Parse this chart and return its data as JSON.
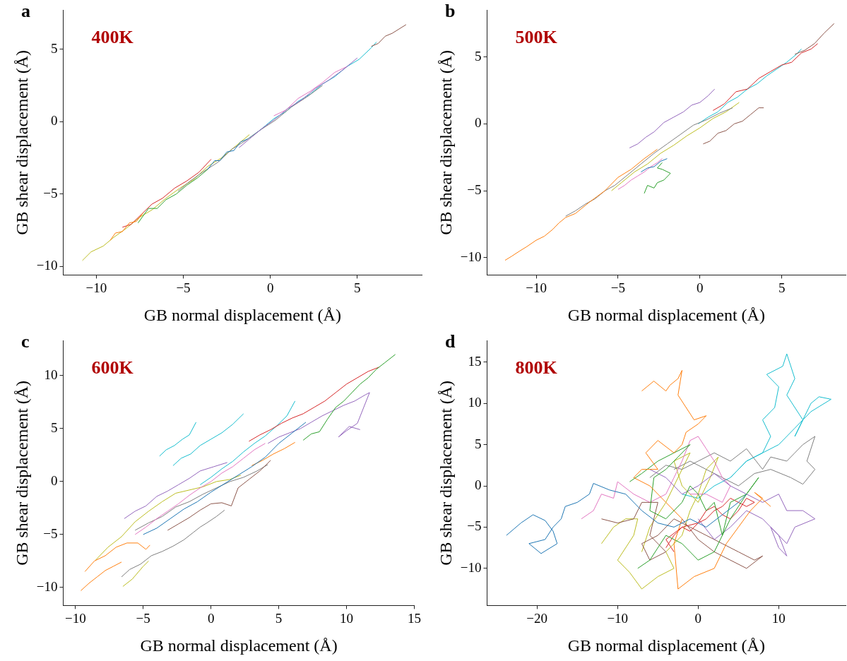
{
  "chart_data": [
    {
      "type": "line",
      "xlabel": "GB normal displacement (Å)",
      "ylabel": "GB shear displacement (Å)",
      "annotations": [
        "a",
        "400K"
      ],
      "marker": "none",
      "xlim": [
        -11.9,
        8.7
      ],
      "ylim": [
        -10.6,
        7.7
      ],
      "xticks": [
        -10,
        -5,
        0,
        5
      ],
      "yticks": [
        -10,
        -5,
        0,
        5
      ],
      "series": [
        {
          "color": "#1f77b4",
          "x": [
            -3.6,
            -3.2,
            -2.9,
            -2.5,
            -2.1,
            -1.7,
            -1.3
          ],
          "values": [
            -3.3,
            -2.7,
            -2.7,
            -2.1,
            -2.0,
            -1.4,
            -1.2
          ]
        },
        {
          "color": "#ff7f0e",
          "x": [
            -9.2,
            -8.9,
            -8.5,
            -8.1,
            -7.7,
            -7.3
          ],
          "values": [
            -8.2,
            -7.7,
            -7.6,
            -7.0,
            -6.9,
            -6.3
          ]
        },
        {
          "color": "#2ca02c",
          "x": [
            -7.6,
            -7.0,
            -6.5,
            -6.0,
            -5.4,
            -4.8,
            -4.2,
            -3.6
          ],
          "values": [
            -7.0,
            -6.0,
            -6.0,
            -5.4,
            -5.0,
            -4.4,
            -3.9,
            -3.3
          ]
        },
        {
          "color": "#d62728",
          "x": [
            -8.5,
            -8.0,
            -7.4,
            -6.8,
            -6.2,
            -5.5,
            -4.8,
            -4.1,
            -3.4
          ],
          "values": [
            -7.3,
            -7.1,
            -6.4,
            -5.7,
            -5.3,
            -4.6,
            -4.1,
            -3.5,
            -2.6
          ]
        },
        {
          "color": "#9467bd",
          "x": [
            -1.8,
            -1.2,
            -0.5,
            0.3,
            1.0,
            1.8,
            2.6,
            3.4,
            4.2,
            5.0
          ],
          "values": [
            -1.8,
            -1.2,
            -0.5,
            0.2,
            0.9,
            1.5,
            2.3,
            2.9,
            3.6,
            4.4
          ]
        },
        {
          "color": "#8c564b",
          "x": [
            5.8,
            6.2,
            6.6,
            7.0,
            7.4,
            7.8
          ],
          "values": [
            5.2,
            5.4,
            5.9,
            6.1,
            6.4,
            6.7
          ]
        },
        {
          "color": "#e377c2",
          "x": [
            0.2,
            0.9,
            1.6,
            2.3,
            3.0,
            3.7,
            4.4
          ],
          "values": [
            0.4,
            0.8,
            1.6,
            2.1,
            2.7,
            3.4,
            3.8
          ]
        },
        {
          "color": "#7f7f7f",
          "x": [
            -5.3,
            -4.6,
            -3.9,
            -3.0,
            -2.2,
            -1.4,
            -0.6,
            0.3,
            1.2,
            2.1,
            3.0
          ],
          "values": [
            -4.8,
            -4.1,
            -3.5,
            -2.8,
            -1.9,
            -1.3,
            -0.6,
            0.1,
            1.0,
            1.7,
            2.5
          ]
        },
        {
          "color": "#bcbd22",
          "x": [
            -10.8,
            -10.3,
            -9.6,
            -9.0,
            -8.3,
            -7.5,
            -6.8,
            -6.0,
            -5.2,
            -4.4,
            -3.6,
            -2.8,
            -2.0,
            -1.2
          ],
          "values": [
            -9.6,
            -9.0,
            -8.6,
            -8.0,
            -7.4,
            -6.6,
            -6.1,
            -5.3,
            -4.6,
            -4.0,
            -3.1,
            -2.5,
            -1.7,
            -0.9
          ]
        },
        {
          "color": "#17becf",
          "x": [
            -1.3,
            -0.6,
            0.2,
            0.9,
            1.6,
            2.3,
            3.0,
            3.7,
            4.4,
            5.1,
            5.8,
            6.1
          ],
          "values": [
            -1.2,
            -0.6,
            0.2,
            0.7,
            1.4,
            1.9,
            2.6,
            3.1,
            3.8,
            4.3,
            5.1,
            5.5
          ]
        }
      ]
    },
    {
      "type": "line",
      "xlabel": "GB normal displacement (Å)",
      "ylabel": "GB shear displacement (Å)",
      "annotations": [
        "b",
        "500K"
      ],
      "marker": "none",
      "xlim": [
        -13.0,
        8.9
      ],
      "ylim": [
        -11.3,
        8.5
      ],
      "xticks": [
        -10,
        -5,
        0,
        5
      ],
      "yticks": [
        -10,
        -5,
        0,
        5
      ],
      "series": [
        {
          "color": "#1f77b4",
          "x": [
            -3.6,
            -3.2,
            -2.8,
            -2.4,
            -2.0
          ],
          "values": [
            -3.6,
            -3.3,
            -3.2,
            -2.8,
            -2.6
          ]
        },
        {
          "color": "#ff7f0e",
          "x": [
            -11.9,
            -11.5,
            -11.0,
            -10.6,
            -10.0,
            -9.5,
            -9.0,
            -8.6,
            -8.2,
            -7.6,
            -6.8,
            -5.8,
            -5.0,
            -4.2,
            -3.4,
            -2.6
          ],
          "values": [
            -10.2,
            -9.9,
            -9.5,
            -9.2,
            -8.7,
            -8.4,
            -7.9,
            -7.4,
            -7.0,
            -6.7,
            -5.9,
            -5.0,
            -4.0,
            -3.4,
            -2.6,
            -1.9
          ]
        },
        {
          "color": "#2ca02c",
          "x": [
            -3.4,
            -3.2,
            -2.8,
            -2.6,
            -2.2,
            -1.8,
            -2.3,
            -2.6,
            -2.3
          ],
          "values": [
            -5.2,
            -4.6,
            -4.8,
            -4.4,
            -4.2,
            -3.7,
            -3.4,
            -3.3,
            -2.9
          ]
        },
        {
          "color": "#d62728",
          "x": [
            0.8,
            1.5,
            2.2,
            2.9,
            3.6,
            4.3,
            5.0,
            5.6,
            6.2,
            6.8,
            7.2
          ],
          "values": [
            1.0,
            1.5,
            2.4,
            2.6,
            3.4,
            3.9,
            4.4,
            4.6,
            5.3,
            5.6,
            6.0
          ]
        },
        {
          "color": "#9467bd",
          "x": [
            -4.3,
            -3.8,
            -3.3,
            -2.8,
            -2.2,
            -1.6,
            -1.0,
            -0.5,
            0.0,
            0.5,
            0.9
          ],
          "values": [
            -1.8,
            -1.5,
            -1.0,
            -0.6,
            0.1,
            0.5,
            0.9,
            1.4,
            1.6,
            2.1,
            2.6
          ]
        },
        {
          "color": "#8c564b",
          "x": [
            0.2,
            0.6,
            1.1,
            1.6,
            2.1,
            2.6,
            3.1,
            3.6,
            3.9
          ],
          "values": [
            -1.5,
            -1.3,
            -0.7,
            -0.5,
            0.0,
            0.2,
            0.7,
            1.2,
            1.2
          ]
        },
        {
          "color": "#8c564b",
          "x": [
            5.8,
            6.4,
            7.0,
            7.6,
            8.2
          ],
          "values": [
            5.2,
            5.5,
            6.0,
            6.8,
            7.5
          ]
        },
        {
          "color": "#e377c2",
          "x": [
            -5.0,
            -4.6,
            -4.2,
            -3.8,
            -3.4,
            -3.0,
            -2.6,
            -2.3
          ],
          "values": [
            -4.9,
            -4.6,
            -4.2,
            -3.9,
            -3.6,
            -3.2,
            -2.9,
            -2.6
          ]
        },
        {
          "color": "#7f7f7f",
          "x": [
            -8.2,
            -7.6,
            -7.0,
            -6.4,
            -5.8,
            -5.2,
            -4.4,
            -3.6,
            -2.8,
            -2.0,
            -1.2,
            -0.4,
            0.4,
            1.2,
            2.0
          ],
          "values": [
            -6.9,
            -6.5,
            -6.0,
            -5.6,
            -5.0,
            -4.6,
            -3.8,
            -3.0,
            -2.2,
            -1.5,
            -0.8,
            -0.1,
            0.3,
            0.8,
            1.2
          ]
        },
        {
          "color": "#bcbd22",
          "x": [
            -5.4,
            -4.8,
            -4.0,
            -3.2,
            -2.4,
            -1.6,
            -0.8,
            0.0,
            0.8,
            1.6,
            2.4
          ],
          "values": [
            -5.0,
            -4.4,
            -3.6,
            -3.0,
            -2.2,
            -1.6,
            -0.9,
            -0.3,
            0.4,
            0.9,
            1.6
          ]
        },
        {
          "color": "#17becf",
          "x": [
            -0.1,
            0.5,
            1.1,
            1.7,
            2.3,
            2.9,
            3.5,
            4.1,
            4.7,
            5.3,
            5.9,
            6.2
          ],
          "values": [
            0.0,
            0.5,
            0.9,
            1.6,
            2.0,
            2.6,
            3.0,
            3.6,
            4.1,
            4.6,
            5.2,
            5.6
          ]
        }
      ]
    },
    {
      "type": "line",
      "xlabel": "GB normal displacement (Å)",
      "ylabel": "GB shear displacement (Å)",
      "annotations": [
        "c",
        "600K"
      ],
      "marker": "none",
      "xlim": [
        -10.9,
        15
      ],
      "ylim": [
        -11.7,
        13.3
      ],
      "xticks": [
        -10,
        -5,
        0,
        5,
        10,
        15
      ],
      "yticks": [
        -10,
        -5,
        0,
        5,
        10
      ],
      "series": [
        {
          "color": "#1f77b4",
          "x": [
            -5,
            -4,
            -3,
            -2,
            -1,
            0,
            1,
            2,
            3,
            4,
            5,
            6,
            7
          ],
          "values": [
            -5.0,
            -4.4,
            -3.5,
            -2.6,
            -1.9,
            -1.0,
            -0.2,
            0.6,
            1.4,
            2.3,
            3.6,
            4.6,
            5.6
          ]
        },
        {
          "color": "#ff7f0e",
          "x": [
            -9.6,
            -9.0,
            -8.4,
            -7.8,
            -7.2,
            -6.6
          ],
          "values": [
            -10.3,
            -9.6,
            -9.0,
            -8.4,
            -8.0,
            -7.6
          ]
        },
        {
          "color": "#ff7f0e",
          "x": [
            -9.3,
            -8.6,
            -7.8,
            -7.0,
            -6.2,
            -5.4,
            -4.8,
            -4.5
          ],
          "values": [
            -8.5,
            -7.5,
            -7.0,
            -6.2,
            -5.8,
            -5.8,
            -6.4,
            -6.0
          ]
        },
        {
          "color": "#ff7f0e",
          "x": [
            3.0,
            3.8,
            4.6,
            5.4,
            6.2
          ],
          "values": [
            1.5,
            2.0,
            2.6,
            3.1,
            3.7
          ]
        },
        {
          "color": "#2ca02c",
          "x": [
            6.8,
            7.4,
            8.0,
            8.6,
            9.2,
            9.8,
            10.4,
            11.0,
            11.6,
            12.2,
            12.8,
            13.6
          ],
          "values": [
            3.9,
            4.5,
            4.7,
            5.9,
            7.0,
            7.6,
            8.4,
            9.2,
            9.8,
            10.6,
            11.2,
            12.0
          ]
        },
        {
          "color": "#d62728",
          "x": [
            2.8,
            3.6,
            4.4,
            5.2,
            6.0,
            6.8,
            7.6,
            8.4,
            9.2,
            10.0,
            10.8,
            11.6,
            12.4
          ],
          "values": [
            3.8,
            4.4,
            4.9,
            5.5,
            6.0,
            6.4,
            7.0,
            7.6,
            8.4,
            9.2,
            9.8,
            10.4,
            10.8
          ]
        },
        {
          "color": "#9467bd",
          "x": [
            -6.4,
            -5.6,
            -4.8,
            -4.0,
            -3.2,
            -2.4,
            -1.6,
            -0.8,
            0.2,
            1.2
          ],
          "values": [
            -3.5,
            -2.8,
            -2.3,
            -1.4,
            -0.9,
            -0.3,
            0.3,
            1.0,
            1.4,
            1.8
          ]
        },
        {
          "color": "#9467bd",
          "x": [
            4.2,
            5.0,
            5.8,
            6.6,
            7.4,
            8.2,
            9.0,
            9.8,
            10.6,
            11.4,
            11.7,
            10.8,
            10.0,
            9.4,
            10.2,
            11.0
          ],
          "values": [
            3.6,
            4.2,
            4.6,
            5.0,
            5.6,
            6.2,
            6.7,
            7.2,
            7.6,
            8.2,
            8.4,
            5.5,
            4.8,
            4.2,
            5.2,
            4.9
          ]
        },
        {
          "color": "#8c564b",
          "x": [
            -3.2,
            -2.4,
            -1.6,
            -0.8,
            0.0,
            0.8,
            1.5,
            2.0,
            2.8,
            3.6,
            4.4
          ],
          "values": [
            -4.6,
            -4.0,
            -3.4,
            -2.7,
            -2.1,
            -2.0,
            -2.3,
            -0.6,
            0.2,
            1.0,
            2.0
          ]
        },
        {
          "color": "#e377c2",
          "x": [
            -5.6,
            -4.8,
            -4.0,
            -3.2,
            -2.4,
            -1.6,
            -0.8,
            0.0,
            0.8,
            1.6,
            2.4,
            3.2,
            4.0
          ],
          "values": [
            -5.0,
            -4.3,
            -3.5,
            -2.8,
            -2.1,
            -1.3,
            -0.6,
            0.0,
            0.8,
            1.4,
            2.2,
            3.0,
            3.6
          ]
        },
        {
          "color": "#7f7f7f",
          "x": [
            -6.6,
            -6.0,
            -5.2,
            -4.4,
            -3.6,
            -2.8,
            -2.0,
            -1.3,
            -0.8,
            -0.3,
            0.4,
            1.0
          ],
          "values": [
            -9.0,
            -8.3,
            -7.8,
            -7.0,
            -6.6,
            -6.1,
            -5.5,
            -4.8,
            -4.3,
            -3.9,
            -3.3,
            -2.7
          ]
        },
        {
          "color": "#7f7f7f",
          "x": [
            -5.6,
            -4.6,
            -3.6,
            -2.6,
            -1.6,
            -0.6,
            0.4,
            1.4,
            2.4,
            3.4,
            4.2
          ],
          "values": [
            -4.6,
            -3.9,
            -3.3,
            -2.4,
            -1.9,
            -1.2,
            -0.6,
            0.0,
            0.4,
            1.0,
            1.6
          ]
        },
        {
          "color": "#bcbd22",
          "x": [
            -6.5,
            -5.8,
            -5.0,
            -4.6
          ],
          "values": [
            -9.9,
            -9.2,
            -8.0,
            -7.5
          ]
        },
        {
          "color": "#bcbd22",
          "x": [
            -8.5,
            -7.6,
            -6.6,
            -5.6,
            -4.6,
            -3.6,
            -2.6,
            -1.6,
            -0.6,
            0.4,
            1.4,
            2.2
          ],
          "values": [
            -7.4,
            -6.2,
            -5.2,
            -3.8,
            -2.8,
            -1.9,
            -1.1,
            -0.8,
            -0.5,
            0.0,
            0.2,
            0.6
          ]
        },
        {
          "color": "#17becf",
          "x": [
            -3.8,
            -3.3,
            -2.7,
            -2.1,
            -1.6,
            -1.1
          ],
          "values": [
            2.4,
            3.0,
            3.4,
            4.0,
            4.4,
            5.6
          ]
        },
        {
          "color": "#17becf",
          "x": [
            -2.8,
            -2.2,
            -1.5,
            -0.8,
            0.0,
            0.8,
            1.6,
            2.4
          ],
          "values": [
            1.5,
            2.2,
            2.6,
            3.4,
            4.0,
            4.6,
            5.4,
            6.4
          ]
        },
        {
          "color": "#17becf",
          "x": [
            -0.8,
            0.0,
            0.8,
            1.6,
            2.4,
            3.2,
            4.0,
            4.8,
            5.6,
            6.2
          ],
          "values": [
            -0.3,
            0.4,
            1.2,
            1.9,
            2.8,
            3.6,
            4.3,
            5.2,
            6.2,
            7.6
          ]
        }
      ]
    },
    {
      "type": "line",
      "xlabel": "GB normal displacement (Å)",
      "ylabel": "GB shear displacement (Å)",
      "annotations": [
        "d",
        "800K"
      ],
      "marker": "none",
      "xlim": [
        -26.2,
        18.3
      ],
      "ylim": [
        -14.5,
        17.6
      ],
      "xticks": [
        -20,
        -10,
        0,
        10
      ],
      "yticks": [
        -10,
        -5,
        0,
        5,
        10,
        15
      ],
      "series": [
        {
          "color": "#1f77b4",
          "x": [
            -23.8,
            -22,
            -20.5,
            -19,
            -18,
            -17.5,
            -19.5,
            -21,
            -19,
            -18,
            -17,
            -16.5,
            -15,
            -13.5,
            -13,
            -11,
            -9,
            -7,
            -5,
            -3,
            -1,
            1,
            3,
            5,
            6
          ],
          "values": [
            -6.0,
            -4.5,
            -3.5,
            -4.2,
            -5.5,
            -7.0,
            -8.2,
            -7.0,
            -6.5,
            -5.0,
            -4.0,
            -2.5,
            -2.0,
            -1.0,
            0.3,
            -0.5,
            -1.0,
            -3.0,
            -4.5,
            -5.0,
            -4.0,
            -5.0,
            -3.5,
            -2.0,
            -1.0
          ]
        },
        {
          "color": "#ff7f0e",
          "x": [
            -7,
            -5.5,
            -4,
            -3.5,
            -2.5,
            -2,
            -2.5,
            -1.5,
            -0.5,
            1,
            0,
            -1.5,
            -2,
            -3,
            -5,
            -6.5,
            -5,
            -7,
            -8,
            -6,
            -4,
            -2,
            -3,
            -2.5,
            -0.5,
            2,
            3.5,
            5,
            6.5,
            8,
            7,
            9
          ],
          "values": [
            11.5,
            12.7,
            11.5,
            12.2,
            13,
            14,
            11,
            9.5,
            8,
            8.5,
            7.5,
            6.5,
            5,
            4,
            5.5,
            4,
            2,
            2,
            1,
            0,
            -2,
            -4,
            -7,
            -12.5,
            -11,
            -10,
            -7,
            -5,
            -3,
            -1.5,
            -0.8,
            -2.5
          ]
        },
        {
          "color": "#2ca02c",
          "x": [
            -8.5,
            -7,
            -5,
            -3,
            -1,
            -2.5,
            -4,
            -5.5,
            -6,
            -4,
            -2,
            -1,
            0,
            1,
            2,
            3,
            4,
            6,
            7.5,
            6,
            4,
            2,
            0,
            -2,
            -4,
            -6,
            -7.5
          ],
          "values": [
            0.5,
            1.5,
            3,
            4,
            5,
            3.5,
            2,
            1,
            -3,
            -4,
            -2,
            0,
            -1,
            -3,
            -2,
            -6,
            -2,
            -1,
            1,
            -1,
            -4,
            -8,
            -9,
            -7,
            -6,
            -9,
            -10
          ]
        },
        {
          "color": "#d62728",
          "x": [
            -4,
            -3,
            -2,
            -1,
            0,
            1,
            2,
            3,
            4,
            5,
            6,
            7,
            6,
            5,
            4,
            3,
            2,
            1,
            0,
            -2,
            -4,
            -3
          ],
          "values": [
            -7.5,
            -6,
            -5,
            -5.5,
            -4.5,
            -4,
            -3,
            -2.5,
            -1.5,
            -2,
            -2.5,
            -2,
            -1.5,
            -3,
            -4,
            -3.5,
            -2.5,
            -3,
            -4.5,
            -5,
            -6.5,
            -8
          ]
        },
        {
          "color": "#9467bd",
          "x": [
            -6,
            -4,
            -2,
            0,
            2,
            4,
            6,
            8,
            10,
            11,
            13,
            14.5,
            12,
            11,
            9,
            10,
            11,
            10,
            8,
            6,
            4,
            2,
            0
          ],
          "values": [
            2,
            1,
            -1,
            0,
            1.5,
            0,
            -1,
            -2,
            -1,
            -3,
            -3,
            -4,
            -5,
            -7,
            -5,
            -7.5,
            -8.5,
            -6,
            -4,
            -3,
            -5,
            -6.5,
            -4
          ]
        },
        {
          "color": "#8c564b",
          "x": [
            -12,
            -10,
            -8,
            -7,
            -5,
            -6,
            -4,
            -6,
            -7,
            -5,
            -3,
            -1,
            1,
            3,
            5,
            7,
            8,
            6,
            4,
            2,
            0,
            -2
          ],
          "values": [
            -4,
            -4.5,
            -4,
            -2,
            -2,
            -6,
            -8,
            -9,
            -7,
            -6,
            -4,
            -5,
            -6,
            -7,
            -8,
            -9,
            -8.5,
            -10,
            -9,
            -8,
            -6.5,
            -4
          ]
        },
        {
          "color": "#e377c2",
          "x": [
            -14.5,
            -13,
            -12,
            -10.5,
            -10,
            -8,
            -6,
            -4,
            -3,
            -2,
            -1,
            0,
            1,
            2,
            3,
            4,
            3,
            1,
            -1
          ],
          "values": [
            -4,
            -3,
            -1,
            -1.5,
            0.5,
            -1,
            -2,
            -1,
            1,
            3,
            5.5,
            6,
            4.5,
            3,
            1,
            0,
            -2,
            -1,
            -1
          ]
        },
        {
          "color": "#7f7f7f",
          "x": [
            -6,
            -4,
            -2,
            0,
            2,
            4,
            6,
            8,
            9,
            11,
            12,
            13,
            14.5,
            13.5,
            14.5,
            13,
            11.5,
            9,
            7,
            5,
            3,
            1,
            -1,
            -3
          ],
          "values": [
            1,
            2.5,
            2,
            3,
            4,
            3,
            4.5,
            2,
            3.5,
            3,
            4,
            5,
            6,
            3,
            2,
            0.2,
            1,
            2,
            1.5,
            0,
            1,
            2,
            3,
            2
          ]
        },
        {
          "color": "#bcbd22",
          "x": [
            -12,
            -10.5,
            -9,
            -7.5,
            -8,
            -10,
            -8.5,
            -7,
            -5,
            -3,
            -4,
            -2,
            -1,
            0,
            1,
            2.5,
            1.5,
            0,
            -2,
            -3,
            -1,
            -2,
            -4,
            -6,
            -7
          ],
          "values": [
            -7,
            -5,
            -4,
            -4,
            -6,
            -9,
            -10.5,
            -12.5,
            -11,
            -10,
            -8,
            -6,
            -3,
            -1,
            2,
            3.5,
            1,
            -2,
            0,
            3,
            4,
            2,
            -2,
            -5,
            -8
          ]
        },
        {
          "color": "#17becf",
          "x": [
            -2,
            0,
            2,
            4,
            5,
            6,
            8,
            9,
            8,
            9.5,
            10,
            8.5,
            10.5,
            11,
            12,
            11,
            13,
            12,
            14,
            15,
            16.5,
            14,
            12,
            10,
            8,
            6,
            4
          ],
          "values": [
            -1,
            -1.5,
            0,
            1,
            2,
            3,
            4,
            6,
            8,
            9.5,
            12,
            13.5,
            14.5,
            16,
            13,
            11,
            8,
            6,
            10,
            10.8,
            10.5,
            9,
            7,
            5,
            4,
            3,
            1
          ]
        }
      ]
    }
  ]
}
